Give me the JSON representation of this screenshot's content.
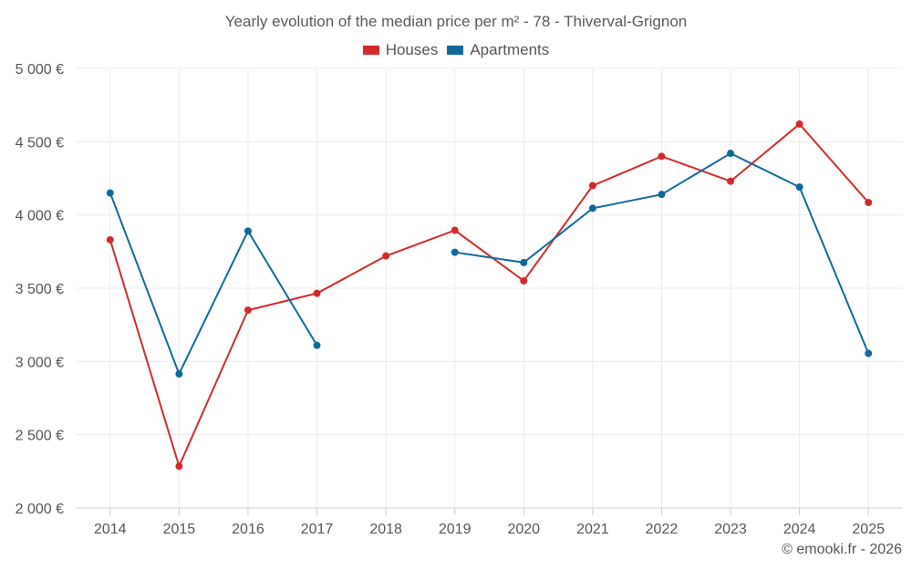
{
  "chart_data": {
    "type": "line",
    "title": "Yearly evolution of the median price per m² - 78 - Thiverval-Grignon",
    "categories": [
      "2014",
      "2015",
      "2016",
      "2017",
      "2018",
      "2019",
      "2020",
      "2021",
      "2022",
      "2023",
      "2024",
      "2025"
    ],
    "series": [
      {
        "name": "Houses",
        "color": "#d42a2a",
        "values": [
          3830,
          2285,
          3350,
          3465,
          3720,
          3895,
          3550,
          4200,
          4400,
          4230,
          4620,
          4085
        ]
      },
      {
        "name": "Apartments",
        "color": "#0f6a9a",
        "values": [
          4150,
          2915,
          3890,
          3110,
          null,
          3745,
          3675,
          4045,
          4140,
          4420,
          4190,
          3055
        ]
      }
    ],
    "ylim": [
      2000,
      5000
    ],
    "yticks": [
      2000,
      2500,
      3000,
      3500,
      4000,
      4500,
      5000
    ],
    "ytick_labels": [
      "2 000 €",
      "2 500 €",
      "3 000 €",
      "3 500 €",
      "4 000 €",
      "4 500 €",
      "5 000 €"
    ],
    "xlabel": "",
    "ylabel": "",
    "grid": true,
    "legend_position": "top-center"
  },
  "credit": "© emooki.fr - 2026"
}
